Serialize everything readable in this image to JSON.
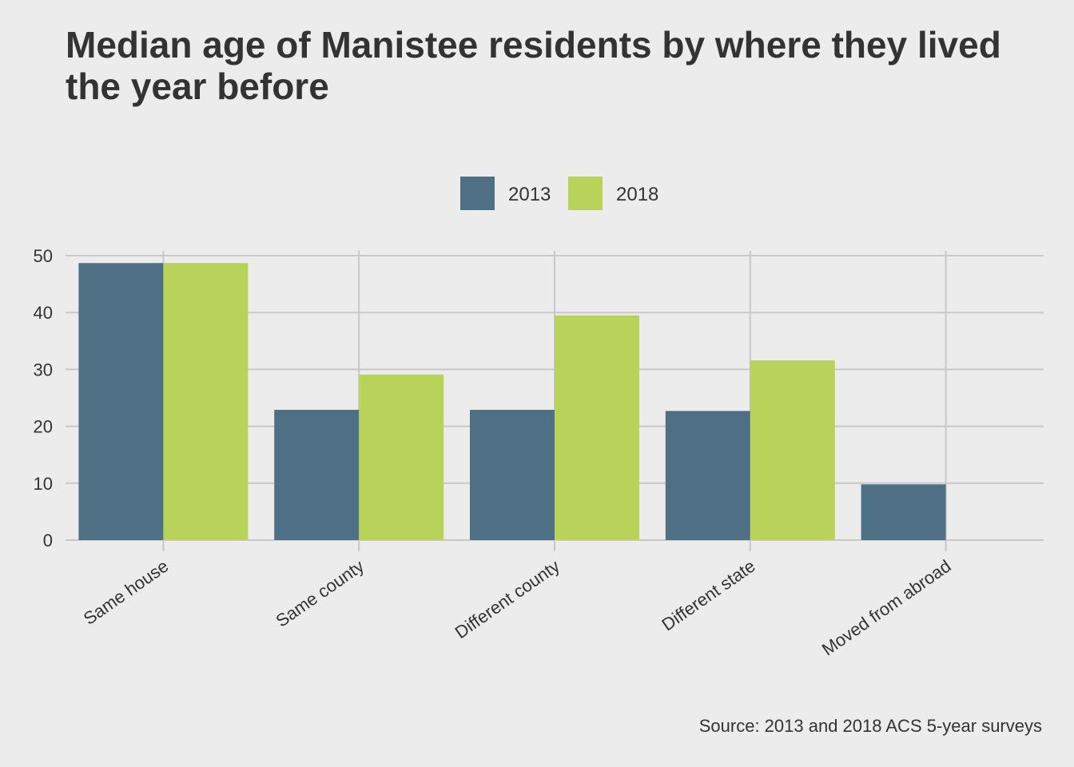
{
  "chart_data": {
    "type": "bar",
    "title": "Median age of Manistee residents by where they lived the year before",
    "caption": "Source: 2013 and 2018 ACS 5-year surveys",
    "categories": [
      "Same house",
      "Same county",
      "Different county",
      "Different state",
      "Moved from abroad"
    ],
    "series": [
      {
        "name": "2013",
        "color": "#4f7084",
        "values": [
          48.7,
          22.9,
          22.9,
          22.7,
          9.8
        ]
      },
      {
        "name": "2018",
        "color": "#b9d35a",
        "values": [
          48.7,
          29.1,
          39.5,
          31.6,
          0
        ]
      }
    ],
    "ylim": [
      0,
      50
    ],
    "yticks": [
      0,
      10,
      20,
      30,
      40,
      50
    ],
    "xlabel": "",
    "ylabel": "",
    "grid": true,
    "legend_position": "top-center",
    "background": "#ececec",
    "grid_color": "#c8c8c8"
  }
}
